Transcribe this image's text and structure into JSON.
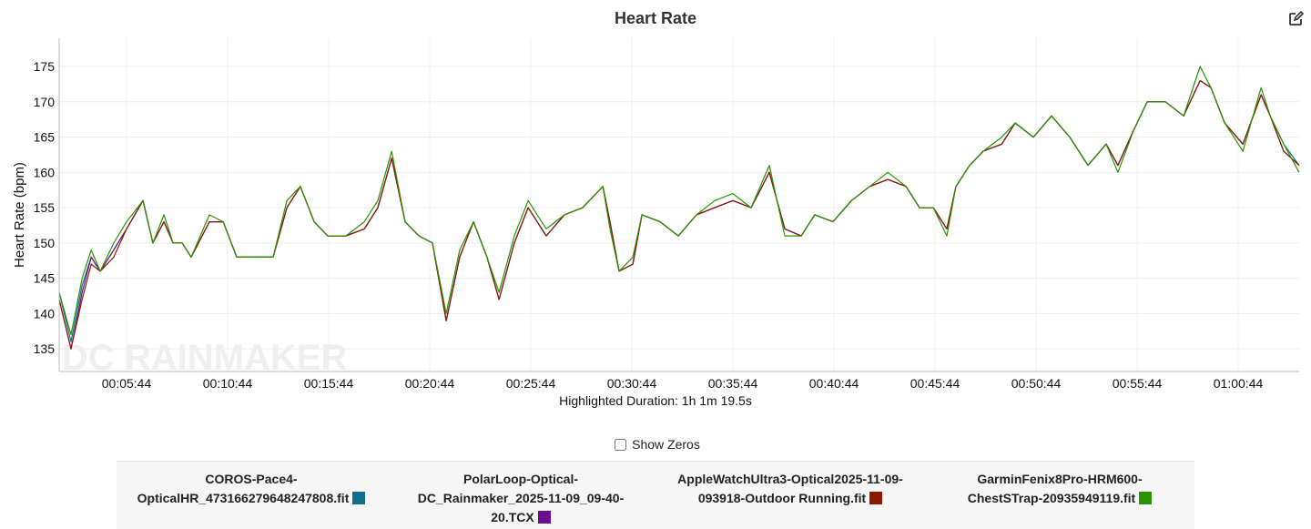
{
  "chart_data": {
    "type": "line",
    "title": "Heart Rate",
    "ylabel": "Heart Rate (bpm)",
    "xlabel": "",
    "footer": "Highlighted Duration: 1h 1m 19.5s",
    "ylim": [
      131.8,
      179
    ],
    "xlim": [
      "00:02:24",
      "01:03:45"
    ],
    "yticks": [
      135,
      140,
      145,
      150,
      155,
      160,
      165,
      170,
      175
    ],
    "xticks": [
      "00:05:44",
      "00:10:44",
      "00:15:44",
      "00:20:44",
      "00:25:44",
      "00:30:44",
      "00:35:44",
      "00:40:44",
      "00:45:44",
      "00:50:44",
      "00:55:44",
      "01:00:44"
    ],
    "grid": true,
    "legend_position": "bottom",
    "watermark": "DC RAINMAKER",
    "x": [
      "00:02:24",
      "00:02:59",
      "00:03:32",
      "00:03:59",
      "00:04:26",
      "00:05:06",
      "00:05:44",
      "00:06:33",
      "00:07:02",
      "00:07:35",
      "00:08:02",
      "00:08:29",
      "00:08:56",
      "00:09:50",
      "00:10:31",
      "00:11:11",
      "00:12:05",
      "00:12:59",
      "00:13:40",
      "00:14:20",
      "00:15:01",
      "00:15:41",
      "00:16:35",
      "00:17:30",
      "00:18:10",
      "00:18:51",
      "00:19:31",
      "00:20:12",
      "00:20:52",
      "00:21:33",
      "00:22:13",
      "00:22:54",
      "00:23:34",
      "00:24:10",
      "00:24:55",
      "00:25:36",
      "00:26:30",
      "00:27:24",
      "00:28:18",
      "00:29:18",
      "00:29:39",
      "00:30:06",
      "00:30:47",
      "00:31:14",
      "00:32:08",
      "00:33:02",
      "00:33:56",
      "00:34:50",
      "00:35:44",
      "00:36:38",
      "00:37:32",
      "00:38:18",
      "00:39:07",
      "00:39:47",
      "00:40:41",
      "00:41:36",
      "00:42:30",
      "00:43:24",
      "00:44:18",
      "00:44:58",
      "00:45:39",
      "00:46:19",
      "00:46:46",
      "00:47:27",
      "00:48:07",
      "00:49:02",
      "00:49:42",
      "00:50:36",
      "00:51:30",
      "00:52:24",
      "00:53:18",
      "00:54:12",
      "00:54:47",
      "00:55:34",
      "00:56:14",
      "00:57:08",
      "00:58:02",
      "00:58:51",
      "00:59:23",
      "01:00:04",
      "01:00:58",
      "01:01:52",
      "01:02:19",
      "01:02:59",
      "01:03:45"
    ],
    "series": [
      {
        "name": "COROS-Pace4-OpticalHR_473166279648247808.fit",
        "color": "#0e6e8c",
        "values": [
          143,
          136,
          144,
          148,
          146,
          149,
          152,
          156,
          150,
          153,
          150,
          150,
          148,
          153,
          153,
          148,
          148,
          148,
          155,
          158,
          153,
          151,
          151,
          152,
          155,
          162,
          153,
          151,
          150,
          139,
          148,
          153,
          148,
          142,
          150,
          155,
          151,
          154,
          155,
          158,
          153,
          146,
          147,
          154,
          153,
          151,
          154,
          155,
          156,
          155,
          160,
          152,
          151,
          154,
          153,
          156,
          158,
          159,
          158,
          155,
          155,
          152,
          158,
          161,
          163,
          164,
          167,
          165,
          168,
          165,
          161,
          164,
          161,
          166,
          170,
          170,
          168,
          173,
          172,
          167,
          164,
          171,
          168,
          164,
          161
        ]
      },
      {
        "name": "PolarLoop-Optical-DC_Rainmaker_2025-11-09_09-40-20.TCX",
        "color": "#6a0d8f",
        "values": [
          142,
          135,
          143,
          148,
          146,
          149,
          152,
          156,
          150,
          153,
          150,
          150,
          148,
          153,
          153,
          148,
          148,
          148,
          155,
          158,
          153,
          151,
          151,
          152,
          155,
          162,
          153,
          151,
          150,
          139,
          148,
          153,
          148,
          142,
          150,
          155,
          151,
          154,
          155,
          158,
          153,
          146,
          147,
          154,
          153,
          151,
          154,
          155,
          156,
          155,
          160,
          152,
          151,
          154,
          153,
          156,
          158,
          159,
          158,
          155,
          155,
          152,
          158,
          161,
          163,
          164,
          167,
          165,
          168,
          165,
          161,
          164,
          161,
          166,
          170,
          170,
          168,
          173,
          172,
          167,
          164,
          171,
          168,
          163,
          161
        ]
      },
      {
        "name": "AppleWatchUltra3-Optical2025-11-09-093918-Outdoor Running.fit",
        "color": "#8b1a00",
        "values": [
          142,
          135,
          142,
          147,
          146,
          148,
          152,
          156,
          150,
          153,
          150,
          150,
          148,
          153,
          153,
          148,
          148,
          148,
          155,
          158,
          153,
          151,
          151,
          152,
          155,
          162,
          153,
          151,
          150,
          139,
          148,
          153,
          148,
          142,
          150,
          155,
          151,
          154,
          155,
          158,
          153,
          146,
          147,
          154,
          153,
          151,
          154,
          155,
          156,
          155,
          160,
          152,
          151,
          154,
          153,
          156,
          158,
          159,
          158,
          155,
          155,
          152,
          158,
          161,
          163,
          164,
          167,
          165,
          168,
          165,
          161,
          164,
          161,
          166,
          170,
          170,
          168,
          173,
          172,
          167,
          164,
          171,
          168,
          163,
          161
        ]
      },
      {
        "name": "GarminFenix8Pro-HRM600-ChestSTrap-20935949119.fit",
        "color": "#2a9400",
        "values": [
          143,
          137,
          145,
          149,
          146,
          150,
          153,
          156,
          150,
          154,
          150,
          150,
          148,
          154,
          153,
          148,
          148,
          148,
          156,
          158,
          153,
          151,
          151,
          153,
          156,
          163,
          153,
          151,
          150,
          140,
          149,
          153,
          148,
          143,
          151,
          156,
          152,
          154,
          155,
          158,
          152,
          146,
          148,
          154,
          153,
          151,
          154,
          156,
          157,
          155,
          161,
          151,
          151,
          154,
          153,
          156,
          158,
          160,
          158,
          155,
          155,
          151,
          158,
          161,
          163,
          165,
          167,
          165,
          168,
          165,
          161,
          164,
          160,
          166,
          170,
          170,
          168,
          175,
          172,
          167,
          163,
          172,
          168,
          164,
          160
        ]
      }
    ]
  },
  "controls": {
    "show_zeros_label": "Show Zeros",
    "show_zeros_checked": false,
    "edit_icon": "edit-icon"
  },
  "legend": {
    "items": [
      {
        "line1": "COROS-Pace4-",
        "line2": "OpticalHR_473166279648247808.fit",
        "color": "#0e6e8c"
      },
      {
        "line1": "PolarLoop-Optical-",
        "line2": "DC_Rainmaker_2025-11-09_09-40-",
        "line3": "20.TCX",
        "color": "#6a0d8f"
      },
      {
        "line1": "AppleWatchUltra3-Optical2025-11-09-",
        "line2": "093918-Outdoor Running.fit",
        "color": "#8b1a00"
      },
      {
        "line1": "GarminFenix8Pro-HRM600-",
        "line2": "ChestSTrap-20935949119.fit",
        "color": "#2a9400"
      }
    ]
  }
}
